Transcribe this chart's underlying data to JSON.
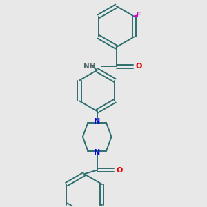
{
  "bg_color": "#e8e8e8",
  "bond_color": "#2d6e6e",
  "bond_width": 1.4,
  "N_color": "#0000ee",
  "O_color": "#ee0000",
  "F_color": "#cc00cc",
  "figsize": [
    3.0,
    3.0
  ],
  "dpi": 100,
  "xlim": [
    -2.2,
    2.2
  ],
  "ylim": [
    -4.5,
    3.5
  ]
}
